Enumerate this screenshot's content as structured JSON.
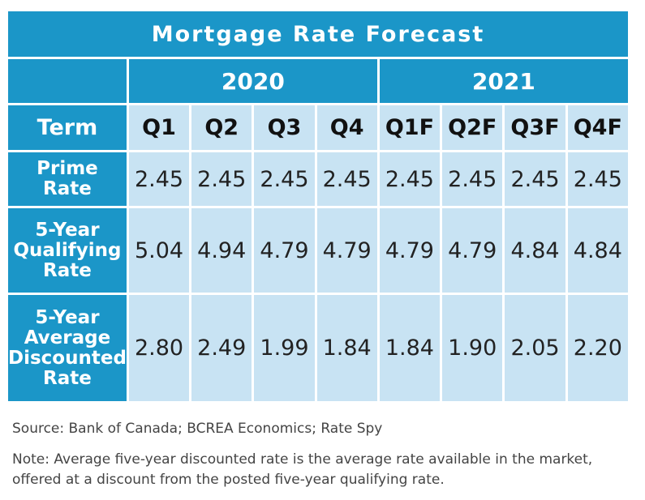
{
  "title": "Mortgage Rate Forecast",
  "years": [
    "2020",
    "2021"
  ],
  "header": {
    "term": "Term",
    "quarters": [
      "Q1",
      "Q2",
      "Q3",
      "Q4",
      "Q1F",
      "Q2F",
      "Q3F",
      "Q4F"
    ]
  },
  "rows": [
    {
      "label_lines": [
        "Prime",
        "Rate"
      ],
      "values": [
        "2.45",
        "2.45",
        "2.45",
        "2.45",
        "2.45",
        "2.45",
        "2.45",
        "2.45"
      ]
    },
    {
      "label_lines": [
        "5-Year",
        "Qualifying",
        "Rate"
      ],
      "values": [
        "5.04",
        "4.94",
        "4.79",
        "4.79",
        "4.79",
        "4.79",
        "4.84",
        "4.84"
      ]
    },
    {
      "label_lines": [
        "5-Year",
        "Average",
        "Discounted",
        "Rate"
      ],
      "values": [
        "2.80",
        "2.49",
        "1.99",
        "1.84",
        "1.84",
        "1.90",
        "2.05",
        "2.20"
      ]
    }
  ],
  "source": "Source: Bank of Canada; BCREA Economics; Rate Spy",
  "note": "Note: Average five-year discounted rate is the average rate available in the market, offered at a discount from the posted five-year qualifying rate.",
  "colors": {
    "header_blue": "#1b96c8",
    "cell_light_blue": "#c8e3f3"
  }
}
